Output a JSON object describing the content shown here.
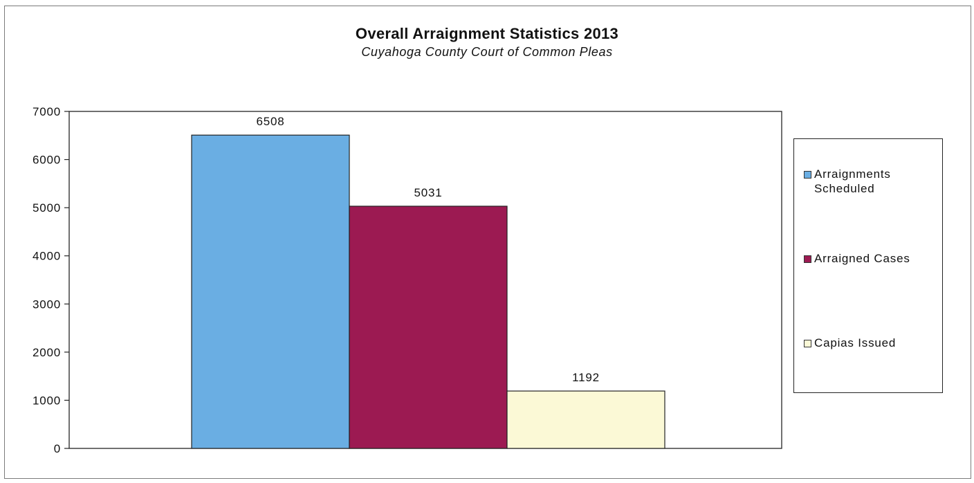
{
  "chart_data": {
    "type": "bar",
    "title": "Overall Arraignment Statistics 2013",
    "subtitle": "Cuyahoga County Court of Common Pleas",
    "series": [
      {
        "name": "Arraignments Scheduled",
        "values": [
          6508
        ],
        "color": "#6aaee3"
      },
      {
        "name": "Arraigned Cases",
        "values": [
          5031
        ],
        "color": "#9c1a52"
      },
      {
        "name": "Capias Issued",
        "values": [
          1192
        ],
        "color": "#fbf9d6"
      }
    ],
    "data_labels": [
      "6508",
      "5031",
      "1192"
    ],
    "ylim": [
      0,
      7000
    ],
    "yticks": [
      0,
      1000,
      2000,
      3000,
      4000,
      5000,
      6000,
      7000
    ],
    "ytick_labels": [
      "0",
      "1000",
      "2000",
      "3000",
      "4000",
      "5000",
      "6000",
      "7000"
    ],
    "xlabel": "",
    "ylabel": "",
    "grid": false,
    "legend_position": "right"
  }
}
